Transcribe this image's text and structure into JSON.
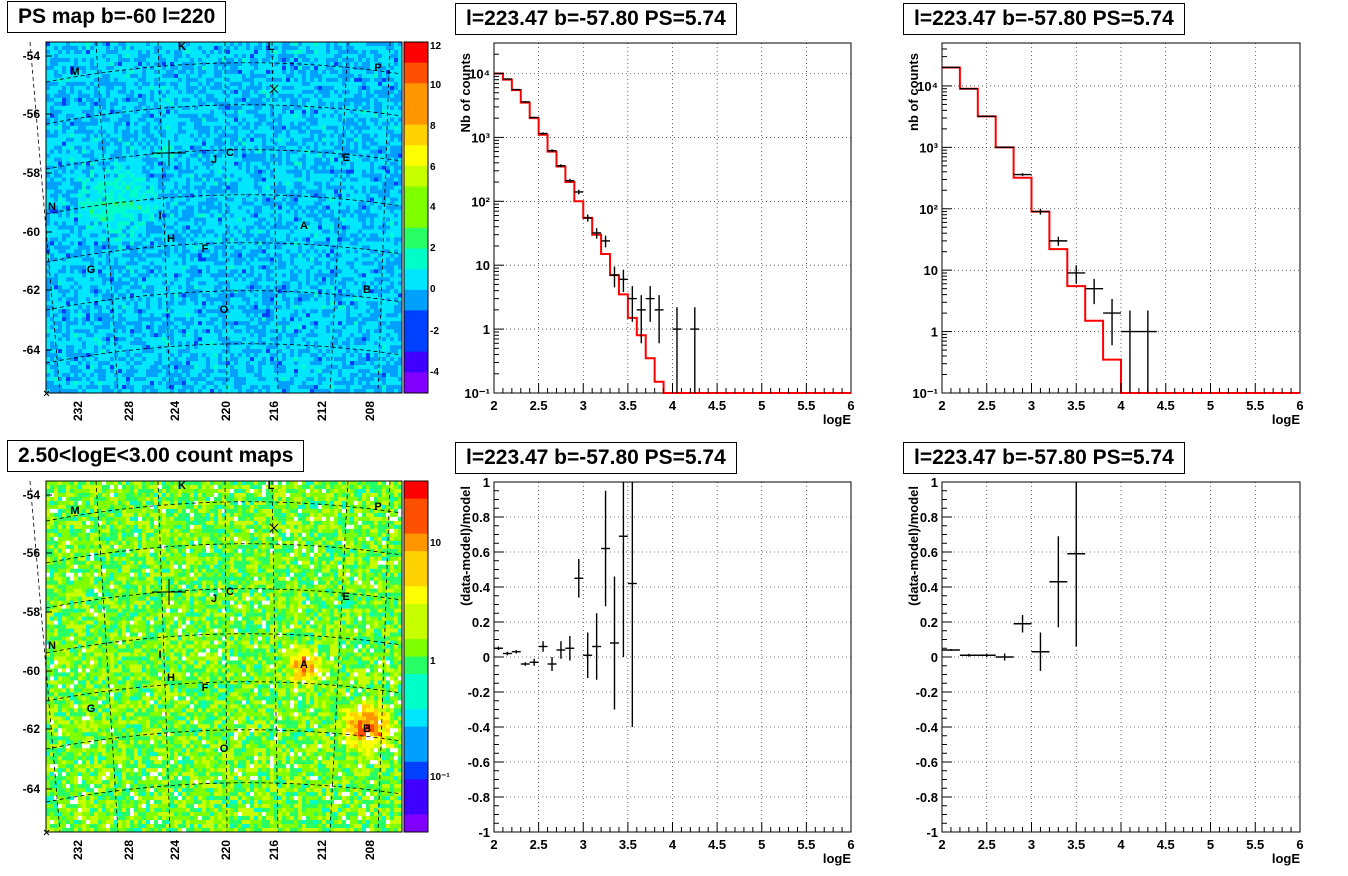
{
  "titles": {
    "map_top": "PS map b=-60 l=220",
    "map_bottom": "2.50<logE<3.00 count maps",
    "spec_a": "l=223.47 b=-57.80 PS=5.74",
    "spec_b": "l=223.47 b=-57.80 PS=5.74",
    "res_a": "l=223.47 b=-57.80 PS=5.74",
    "res_b": "l=223.47 b=-57.80 PS=5.74"
  },
  "colors": {
    "model": "#ff0000",
    "data": "#000000",
    "grid": "#000000"
  },
  "chart_data": [
    {
      "type": "heatmap",
      "yticks": [
        "-54",
        "-56",
        "-58",
        "-60",
        "-62",
        "-64"
      ],
      "xticks": [
        "232",
        "228",
        "224",
        "220",
        "216",
        "212",
        "208"
      ],
      "zticks": [
        "12",
        "10",
        "8",
        "6",
        "4",
        "2",
        "0",
        "-2",
        "-4"
      ],
      "zlim": [
        -5,
        12
      ],
      "sources": [
        "K",
        "L",
        "M",
        "P",
        "C",
        "J",
        "E",
        "N",
        "I",
        "A",
        "H",
        "F",
        "G",
        "B",
        "O"
      ],
      "typical_value": 1
    },
    {
      "type": "heatmap",
      "yticks": [
        "-54",
        "-56",
        "-58",
        "-60",
        "-62",
        "-64"
      ],
      "xticks": [
        "232",
        "228",
        "224",
        "220",
        "216",
        "212",
        "208"
      ],
      "zticks": [
        "10",
        "1",
        "10⁻¹"
      ],
      "zscale": "log",
      "sources": [
        "K",
        "L",
        "M",
        "P",
        "C",
        "J",
        "E",
        "N",
        "I",
        "A",
        "H",
        "F",
        "G",
        "B",
        "O"
      ],
      "bright_spots": [
        "A",
        "B"
      ]
    },
    {
      "type": "line",
      "xlabel": "logE",
      "ylabel": "Nb of counts",
      "xlim": [
        2,
        6
      ],
      "ylim": [
        0.1,
        30000
      ],
      "yscale": "log",
      "xticks": [
        "2",
        "2.5",
        "3",
        "3.5",
        "4",
        "4.5",
        "5",
        "5.5",
        "6"
      ],
      "yticks": [
        "10⁴",
        "10³",
        "10²",
        "10",
        "1",
        "10⁻¹"
      ],
      "model_edges": [
        2.0,
        2.1,
        2.2,
        2.3,
        2.4,
        2.5,
        2.6,
        2.7,
        2.8,
        2.9,
        3.0,
        3.1,
        3.2,
        3.3,
        3.4,
        3.5,
        3.6,
        3.7,
        3.8,
        3.9,
        4.0,
        4.1,
        4.2,
        6.0
      ],
      "model_values": [
        10000,
        8000,
        5500,
        3500,
        2000,
        1100,
        600,
        350,
        200,
        100,
        55,
        30,
        15,
        7,
        3.5,
        1.5,
        0.8,
        0.35,
        0.15,
        0.1,
        0.05,
        0.02,
        0.005
      ],
      "data": [
        {
          "x": 2.05,
          "y": 10000,
          "lo": 9900,
          "hi": 10100
        },
        {
          "x": 2.15,
          "y": 8200,
          "lo": 8100,
          "hi": 8300
        },
        {
          "x": 2.25,
          "y": 5600,
          "lo": 5500,
          "hi": 5700
        },
        {
          "x": 2.35,
          "y": 3600,
          "lo": 3500,
          "hi": 3700
        },
        {
          "x": 2.45,
          "y": 2050,
          "lo": 2000,
          "hi": 2100
        },
        {
          "x": 2.55,
          "y": 1150,
          "lo": 1100,
          "hi": 1200
        },
        {
          "x": 2.65,
          "y": 620,
          "lo": 590,
          "hi": 650
        },
        {
          "x": 2.75,
          "y": 360,
          "lo": 340,
          "hi": 380
        },
        {
          "x": 2.85,
          "y": 210,
          "lo": 195,
          "hi": 225
        },
        {
          "x": 2.95,
          "y": 140,
          "lo": 128,
          "hi": 152
        },
        {
          "x": 3.05,
          "y": 55,
          "lo": 48,
          "hi": 62
        },
        {
          "x": 3.15,
          "y": 32,
          "lo": 26,
          "hi": 38
        },
        {
          "x": 3.25,
          "y": 24,
          "lo": 19,
          "hi": 29
        },
        {
          "x": 3.35,
          "y": 7,
          "lo": 4.5,
          "hi": 9.5
        },
        {
          "x": 3.45,
          "y": 6,
          "lo": 3.8,
          "hi": 8.5
        },
        {
          "x": 3.55,
          "y": 3,
          "lo": 1.3,
          "hi": 4.7
        },
        {
          "x": 3.65,
          "y": 2,
          "lo": 0.6,
          "hi": 3.4
        },
        {
          "x": 3.75,
          "y": 3,
          "lo": 1.3,
          "hi": 4.7
        },
        {
          "x": 3.85,
          "y": 2,
          "lo": 0.6,
          "hi": 3.4
        },
        {
          "x": 4.05,
          "y": 1,
          "lo": 0.1,
          "hi": 2.2
        },
        {
          "x": 4.25,
          "y": 1,
          "lo": 0.1,
          "hi": 2.2
        }
      ]
    },
    {
      "type": "line",
      "xlabel": "logE",
      "ylabel": "nb of counts",
      "xlim": [
        2,
        6
      ],
      "ylim": [
        0.1,
        50000
      ],
      "yscale": "log",
      "xticks": [
        "2",
        "2.5",
        "3",
        "3.5",
        "4",
        "4.5",
        "5",
        "5.5",
        "6"
      ],
      "yticks": [
        "10⁴",
        "10³",
        "10²",
        "10",
        "1",
        "10⁻¹"
      ],
      "model_edges": [
        2.0,
        2.2,
        2.4,
        2.6,
        2.8,
        3.0,
        3.2,
        3.4,
        3.6,
        3.8,
        4.0,
        4.2,
        6.0
      ],
      "model_values": [
        20000,
        9000,
        3200,
        1000,
        320,
        90,
        22,
        5.5,
        1.5,
        0.35,
        0.08,
        0.02
      ],
      "data": [
        {
          "x": 2.1,
          "y": 20000,
          "lo": 19800,
          "hi": 20200
        },
        {
          "x": 2.3,
          "y": 9000,
          "lo": 8900,
          "hi": 9100
        },
        {
          "x": 2.5,
          "y": 3200,
          "lo": 3150,
          "hi": 3250
        },
        {
          "x": 2.7,
          "y": 1000,
          "lo": 970,
          "hi": 1030
        },
        {
          "x": 2.9,
          "y": 360,
          "lo": 340,
          "hi": 380
        },
        {
          "x": 3.1,
          "y": 90,
          "lo": 80,
          "hi": 100
        },
        {
          "x": 3.3,
          "y": 30,
          "lo": 25,
          "hi": 35
        },
        {
          "x": 3.5,
          "y": 9,
          "lo": 6,
          "hi": 12
        },
        {
          "x": 3.7,
          "y": 5,
          "lo": 2.8,
          "hi": 7.2
        },
        {
          "x": 3.9,
          "y": 2,
          "lo": 0.6,
          "hi": 3.4
        },
        {
          "x": 4.1,
          "y": 1,
          "lo": 0.1,
          "hi": 2.2
        },
        {
          "x": 4.3,
          "y": 1,
          "lo": 0.1,
          "hi": 2.2
        }
      ]
    },
    {
      "type": "scatter",
      "xlabel": "logE",
      "ylabel": "(data-model)/model",
      "xlim": [
        2,
        6
      ],
      "ylim": [
        -1,
        1
      ],
      "xticks": [
        "2",
        "2.5",
        "3",
        "3.5",
        "4",
        "4.5",
        "5",
        "5.5",
        "6"
      ],
      "yticks": [
        "1",
        "0.8",
        "0.6",
        "0.4",
        "0.2",
        "0",
        "-0.2",
        "-0.4",
        "-0.6",
        "-0.8",
        "-1"
      ],
      "data": [
        {
          "x": 2.05,
          "y": 0.05,
          "e": 0.01
        },
        {
          "x": 2.15,
          "y": 0.02,
          "e": 0.01
        },
        {
          "x": 2.25,
          "y": 0.03,
          "e": 0.01
        },
        {
          "x": 2.35,
          "y": -0.04,
          "e": 0.01
        },
        {
          "x": 2.45,
          "y": -0.03,
          "e": 0.02
        },
        {
          "x": 2.55,
          "y": 0.06,
          "e": 0.03
        },
        {
          "x": 2.65,
          "y": -0.04,
          "e": 0.04
        },
        {
          "x": 2.75,
          "y": 0.04,
          "e": 0.05
        },
        {
          "x": 2.85,
          "y": 0.05,
          "e": 0.07
        },
        {
          "x": 2.95,
          "y": 0.45,
          "e": 0.11
        },
        {
          "x": 3.05,
          "y": 0.01,
          "e": 0.13
        },
        {
          "x": 3.15,
          "y": 0.06,
          "e": 0.19
        },
        {
          "x": 3.25,
          "y": 0.62,
          "e": 0.33
        },
        {
          "x": 3.35,
          "y": 0.08,
          "e": 0.38
        },
        {
          "x": 3.45,
          "y": 0.69,
          "e": 0.69
        },
        {
          "x": 3.55,
          "y": 0.42,
          "e": 0.82
        }
      ]
    },
    {
      "type": "scatter",
      "xlabel": "logE",
      "ylabel": "(data-model)/model",
      "xlim": [
        2,
        6
      ],
      "ylim": [
        -1,
        1
      ],
      "xticks": [
        "2",
        "2.5",
        "3",
        "3.5",
        "4",
        "4.5",
        "5",
        "5.5",
        "6"
      ],
      "yticks": [
        "1",
        "0.8",
        "0.6",
        "0.4",
        "0.2",
        "0",
        "-0.2",
        "-0.4",
        "-0.6",
        "-0.8",
        "-1"
      ],
      "data": [
        {
          "x": 2.1,
          "y": 0.04,
          "e": 0.005
        },
        {
          "x": 2.3,
          "y": 0.01,
          "e": 0.008
        },
        {
          "x": 2.5,
          "y": 0.01,
          "e": 0.01
        },
        {
          "x": 2.7,
          "y": 0.0,
          "e": 0.02
        },
        {
          "x": 2.9,
          "y": 0.19,
          "e": 0.05
        },
        {
          "x": 3.1,
          "y": 0.03,
          "e": 0.11
        },
        {
          "x": 3.3,
          "y": 0.43,
          "e": 0.26
        },
        {
          "x": 3.5,
          "y": 0.59,
          "e": 0.53
        }
      ]
    }
  ]
}
